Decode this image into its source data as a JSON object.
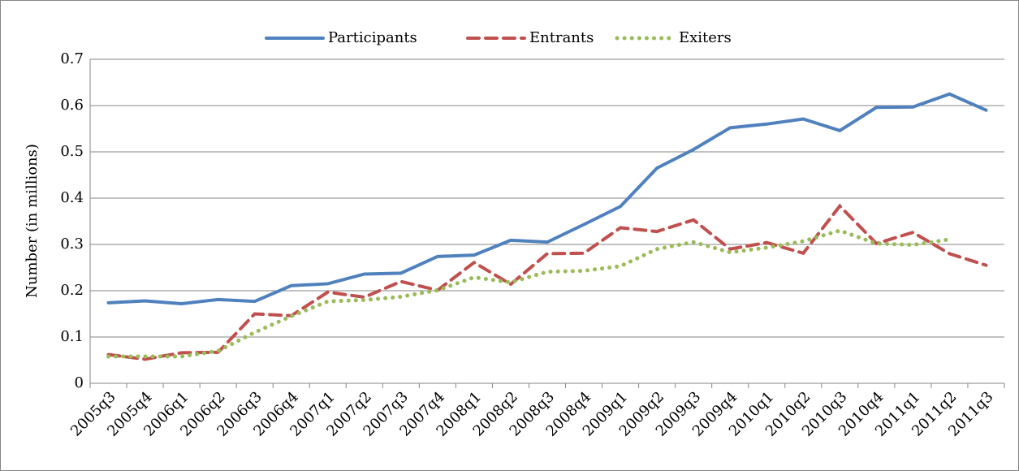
{
  "chart_data": {
    "type": "line",
    "y_label": "Number (in millions)",
    "categories": [
      "2005q3",
      "2005q4",
      "2006q1",
      "2006q2",
      "2006q3",
      "2006q4",
      "2007q1",
      "2007q2",
      "2007q3",
      "2007q4",
      "2008q1",
      "2008q2",
      "2008q3",
      "2008q4",
      "2009q1",
      "2009q2",
      "2009q3",
      "2009q4",
      "2010q1",
      "2010q2",
      "2010q3",
      "2010q4",
      "2011q1",
      "2011q2",
      "2011q3"
    ],
    "series": [
      {
        "name": "Participants",
        "color": "#4f81bd",
        "style": "solid",
        "values": [
          0.174,
          0.178,
          0.172,
          0.181,
          0.177,
          0.211,
          0.215,
          0.236,
          0.238,
          0.274,
          0.277,
          0.309,
          0.305,
          0.343,
          0.382,
          0.465,
          0.505,
          0.552,
          0.56,
          0.571,
          0.546,
          0.596,
          0.597,
          0.625,
          0.59
        ]
      },
      {
        "name": "Entrants",
        "color": "#c0504d",
        "style": "dashed",
        "values": [
          0.062,
          0.052,
          0.066,
          0.067,
          0.15,
          0.146,
          0.197,
          0.186,
          0.22,
          0.201,
          0.261,
          0.214,
          0.28,
          0.281,
          0.336,
          0.328,
          0.353,
          0.29,
          0.304,
          0.281,
          0.383,
          0.302,
          0.326,
          0.28,
          0.255
        ]
      },
      {
        "name": "Exiters",
        "color": "#9bbb59",
        "style": "dotted",
        "values": [
          0.058,
          0.058,
          0.058,
          0.07,
          0.11,
          0.145,
          0.177,
          0.18,
          0.187,
          0.201,
          0.229,
          0.218,
          0.241,
          0.243,
          0.253,
          0.29,
          0.305,
          0.283,
          0.293,
          0.307,
          0.33,
          0.302,
          0.299,
          0.311,
          null
        ]
      }
    ],
    "ylim": [
      0,
      0.7
    ],
    "yticks": [
      0,
      0.1,
      0.2,
      0.3,
      0.4,
      0.5,
      0.6,
      0.7
    ],
    "grid": true,
    "legend": "top"
  }
}
